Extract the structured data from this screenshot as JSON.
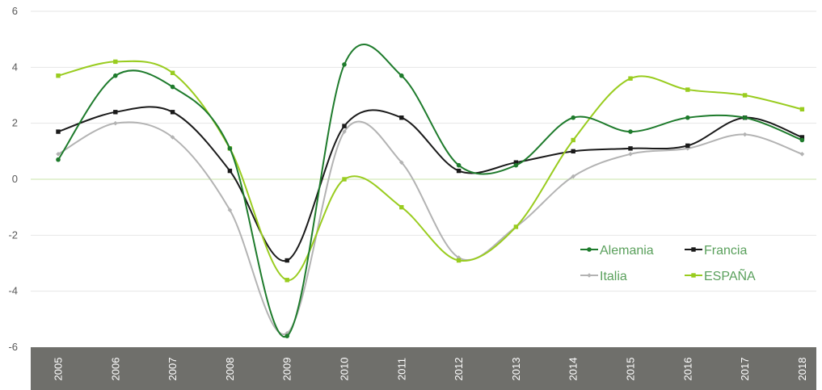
{
  "chart_data": {
    "type": "line",
    "title": "",
    "xlabel": "",
    "ylabel": "",
    "categories": [
      "2005",
      "2006",
      "2007",
      "2008",
      "2009",
      "2010",
      "2011",
      "2012",
      "2013",
      "2014",
      "2015",
      "2016",
      "2017",
      "2018"
    ],
    "ylim": [
      -6,
      6
    ],
    "yticks": [
      "6",
      "4",
      "2",
      "0",
      "-2",
      "-4",
      "-6"
    ],
    "ytick_values": [
      6,
      4,
      2,
      0,
      -2,
      -4,
      -6
    ],
    "grid": true,
    "smooth": true,
    "legend_position": "bottom-right",
    "series": [
      {
        "name": "Alemania",
        "color": "#1e7b2c",
        "marker": "circle",
        "values": [
          0.7,
          3.7,
          3.3,
          1.1,
          -5.6,
          4.1,
          3.7,
          0.5,
          0.5,
          2.2,
          1.7,
          2.2,
          2.2,
          1.4
        ]
      },
      {
        "name": "Francia",
        "color": "#1a1a1a",
        "marker": "square",
        "values": [
          1.7,
          2.4,
          2.4,
          0.3,
          -2.9,
          1.9,
          2.2,
          0.3,
          0.6,
          1.0,
          1.1,
          1.2,
          2.2,
          1.5
        ]
      },
      {
        "name": "Italia",
        "color": "#b3b3b3",
        "marker": "diamond",
        "values": [
          0.9,
          2.0,
          1.5,
          -1.1,
          -5.5,
          1.7,
          0.6,
          -2.8,
          -1.7,
          0.1,
          0.9,
          1.1,
          1.6,
          0.9
        ]
      },
      {
        "name": "ESPAÑA",
        "color": "#99cc1f",
        "marker": "square",
        "values": [
          3.7,
          4.2,
          3.8,
          1.1,
          -3.6,
          0.0,
          -1.0,
          -2.9,
          -1.7,
          1.4,
          3.6,
          3.2,
          3.0,
          2.5
        ]
      }
    ]
  },
  "colors": {
    "axis_band": "#6f6f6b",
    "gridline": "#e6e6e6",
    "zero_line": "#c8e6a8"
  }
}
